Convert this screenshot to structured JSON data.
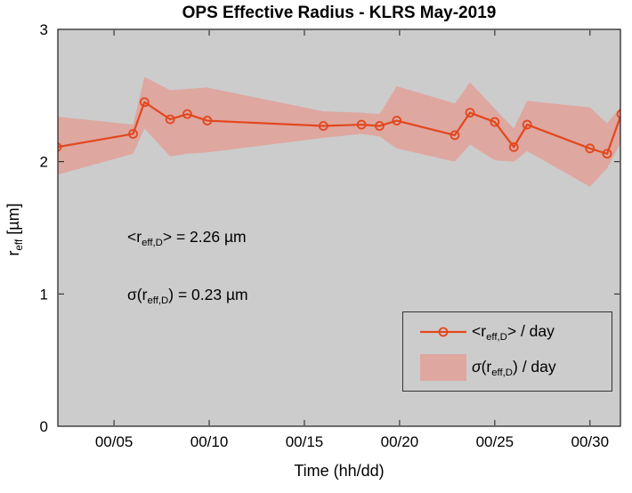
{
  "title": "OPS Effective Radius - KLRS May-2019",
  "xlabel": "Time (hh/dd)",
  "ylabel_parts": {
    "pre": "r",
    "sub": "eff",
    "post": " [µm]"
  },
  "annotations": {
    "mean": {
      "pre": "<r",
      "sub": "eff,D",
      "post": "> = 2.26 µm"
    },
    "sigma": {
      "pre": "σ(r",
      "sub": "eff,D",
      "post": ") = 0.23 µm"
    }
  },
  "legend": {
    "entries": [
      {
        "sigma": "",
        "pre": "<r",
        "sub": "eff,D",
        "post": "> / day"
      },
      {
        "sigma": "σ",
        "pre": "(r",
        "sub": "eff,D",
        "post": ") / day"
      }
    ]
  },
  "colors": {
    "line": "#E2471D",
    "band": "#DEA7A0",
    "plot_bg": "#CCCCCC",
    "figure_bg": "#FFFFFF",
    "axis": "#1A1A1A"
  },
  "chart_data": {
    "type": "line",
    "title": "OPS Effective Radius - KLRS May-2019",
    "xlabel": "Time (hh/dd)",
    "ylabel": "r_eff [µm]",
    "x_days_may2019": [
      2.0,
      6.0,
      6.6,
      7.95,
      8.85,
      9.9,
      16.0,
      18.0,
      18.95,
      19.85,
      22.9,
      23.7,
      25.0,
      26.0,
      26.7,
      30.0,
      30.9,
      31.65
    ],
    "series": [
      {
        "name": "<r_eff,D> / day",
        "marker": "o",
        "values": [
          2.11,
          2.21,
          2.45,
          2.32,
          2.36,
          2.31,
          2.27,
          2.28,
          2.27,
          2.31,
          2.2,
          2.37,
          2.3,
          2.11,
          2.28,
          2.1,
          2.06,
          2.36
        ]
      }
    ],
    "band": {
      "name": "σ(r_eff,D) / day",
      "top": [
        2.34,
        2.28,
        2.64,
        2.54,
        2.55,
        2.56,
        2.38,
        2.37,
        2.36,
        2.57,
        2.44,
        2.6,
        2.4,
        2.25,
        2.46,
        2.41,
        2.29,
        2.42
      ],
      "bottom": [
        1.9,
        2.06,
        2.25,
        2.04,
        2.06,
        2.07,
        2.18,
        2.21,
        2.19,
        2.1,
        2.0,
        2.13,
        2.01,
        2.0,
        2.08,
        1.81,
        1.95,
        2.15
      ]
    },
    "stats": {
      "mean_reff": "2.26 µm",
      "sigma_reff": "0.23 µm"
    },
    "xlim": [
      2.05,
      31.6
    ],
    "ylim": [
      0,
      3
    ],
    "xticks": {
      "values": [
        5,
        10,
        15,
        20,
        25,
        30
      ],
      "labels": [
        "00/05",
        "00/10",
        "00/15",
        "00/20",
        "00/25",
        "00/30"
      ]
    },
    "yticks": {
      "values": [
        0,
        1,
        2,
        3
      ],
      "labels": [
        "0",
        "1",
        "2",
        "3"
      ]
    },
    "grid": false,
    "legend_position": "lower-right"
  }
}
